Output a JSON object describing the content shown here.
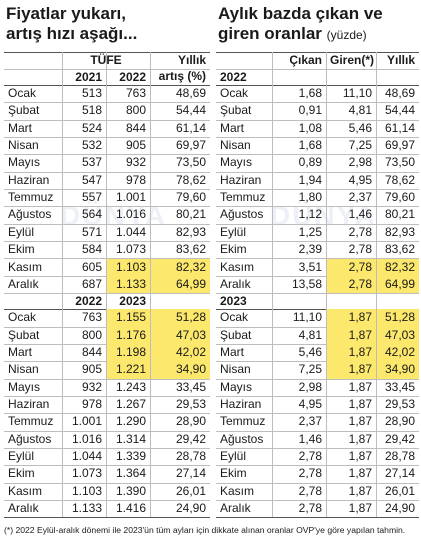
{
  "watermark": "DÜNYA",
  "footnote": "(*) 2022 Eylül-aralık dönemi ile 2023'ün tüm ayları için dikkate alınan oranlar OVP'ye göre yapılan tahmin.",
  "highlight_color": "#fbe86c",
  "left": {
    "title": [
      "Fiyatlar yukarı,",
      "artış hızı aşağı..."
    ],
    "group_header": "TÜFE",
    "annual_header": [
      "Yıllık",
      "artış (%)"
    ],
    "sections": [
      {
        "columns": [
          "2021",
          "2022"
        ],
        "highlight_rows": [
          10,
          11
        ],
        "rows": [
          [
            "Ocak",
            "513",
            "763",
            "48,69"
          ],
          [
            "Şubat",
            "518",
            "800",
            "54,44"
          ],
          [
            "Mart",
            "524",
            "844",
            "61,14"
          ],
          [
            "Nisan",
            "532",
            "905",
            "69,97"
          ],
          [
            "Mayıs",
            "537",
            "932",
            "73,50"
          ],
          [
            "Haziran",
            "547",
            "978",
            "78,62"
          ],
          [
            "Temmuz",
            "557",
            "1.001",
            "79,60"
          ],
          [
            "Ağustos",
            "564",
            "1.016",
            "80,21"
          ],
          [
            "Eylül",
            "571",
            "1.044",
            "82,93"
          ],
          [
            "Ekim",
            "584",
            "1.073",
            "83,62"
          ],
          [
            "Kasım",
            "605",
            "1.103",
            "82,32"
          ],
          [
            "Aralık",
            "687",
            "1.133",
            "64,99"
          ]
        ]
      },
      {
        "columns": [
          "2022",
          "2023"
        ],
        "highlight_rows": [
          0,
          1,
          2,
          3
        ],
        "rows": [
          [
            "Ocak",
            "763",
            "1.155",
            "51,28"
          ],
          [
            "Şubat",
            "800",
            "1.176",
            "47,03"
          ],
          [
            "Mart",
            "844",
            "1.198",
            "42,02"
          ],
          [
            "Nisan",
            "905",
            "1.221",
            "34,90"
          ],
          [
            "Mayıs",
            "932",
            "1.243",
            "33,45"
          ],
          [
            "Haziran",
            "978",
            "1.267",
            "29,53"
          ],
          [
            "Temmuz",
            "1.001",
            "1.290",
            "28,90"
          ],
          [
            "Ağustos",
            "1.016",
            "1.314",
            "29,42"
          ],
          [
            "Eylül",
            "1.044",
            "1.339",
            "28,78"
          ],
          [
            "Ekim",
            "1.073",
            "1.364",
            "27,14"
          ],
          [
            "Kasım",
            "1.103",
            "1.390",
            "26,01"
          ],
          [
            "Aralık",
            "1.133",
            "1.416",
            "24,90"
          ]
        ]
      }
    ]
  },
  "right": {
    "title": [
      "Aylık bazda çıkan ve",
      "giren oranlar"
    ],
    "unit": "(yüzde)",
    "columns": [
      "Çıkan",
      "Giren(*)",
      "Yıllık"
    ],
    "sections": [
      {
        "label": "2022",
        "highlight_rows": [
          10,
          11
        ],
        "rows": [
          [
            "Ocak",
            "1,68",
            "11,10",
            "48,69"
          ],
          [
            "Şubat",
            "0,91",
            "4,81",
            "54,44"
          ],
          [
            "Mart",
            "1,08",
            "5,46",
            "61,14"
          ],
          [
            "Nisan",
            "1,68",
            "7,25",
            "69,97"
          ],
          [
            "Mayıs",
            "0,89",
            "2,98",
            "73,50"
          ],
          [
            "Haziran",
            "1,94",
            "4,95",
            "78,62"
          ],
          [
            "Temmuz",
            "1,80",
            "2,37",
            "79,60"
          ],
          [
            "Ağustos",
            "1,12",
            "1,46",
            "80,21"
          ],
          [
            "Eylül",
            "1,25",
            "2,78",
            "82,93"
          ],
          [
            "Ekim",
            "2,39",
            "2,78",
            "83,62"
          ],
          [
            "Kasım",
            "3,51",
            "2,78",
            "82,32"
          ],
          [
            "Aralık",
            "13,58",
            "2,78",
            "64,99"
          ]
        ]
      },
      {
        "label": "2023",
        "highlight_rows": [
          0,
          1,
          2,
          3
        ],
        "rows": [
          [
            "Ocak",
            "11,10",
            "1,87",
            "51,28"
          ],
          [
            "Şubat",
            "4,81",
            "1,87",
            "47,03"
          ],
          [
            "Mart",
            "5,46",
            "1,87",
            "42,02"
          ],
          [
            "Nisan",
            "7,25",
            "1,87",
            "34,90"
          ],
          [
            "Mayıs",
            "2,98",
            "1,87",
            "33,45"
          ],
          [
            "Haziran",
            "4,95",
            "1,87",
            "29,53"
          ],
          [
            "Temmuz",
            "2,37",
            "1,87",
            "28,90"
          ],
          [
            "Ağustos",
            "1,46",
            "1,87",
            "29,42"
          ],
          [
            "Eylül",
            "2,78",
            "1,87",
            "28,78"
          ],
          [
            "Ekim",
            "2,78",
            "1,87",
            "27,14"
          ],
          [
            "Kasım",
            "2,78",
            "1,87",
            "26,01"
          ],
          [
            "Aralık",
            "2,78",
            "1,87",
            "24,90"
          ]
        ]
      }
    ]
  }
}
